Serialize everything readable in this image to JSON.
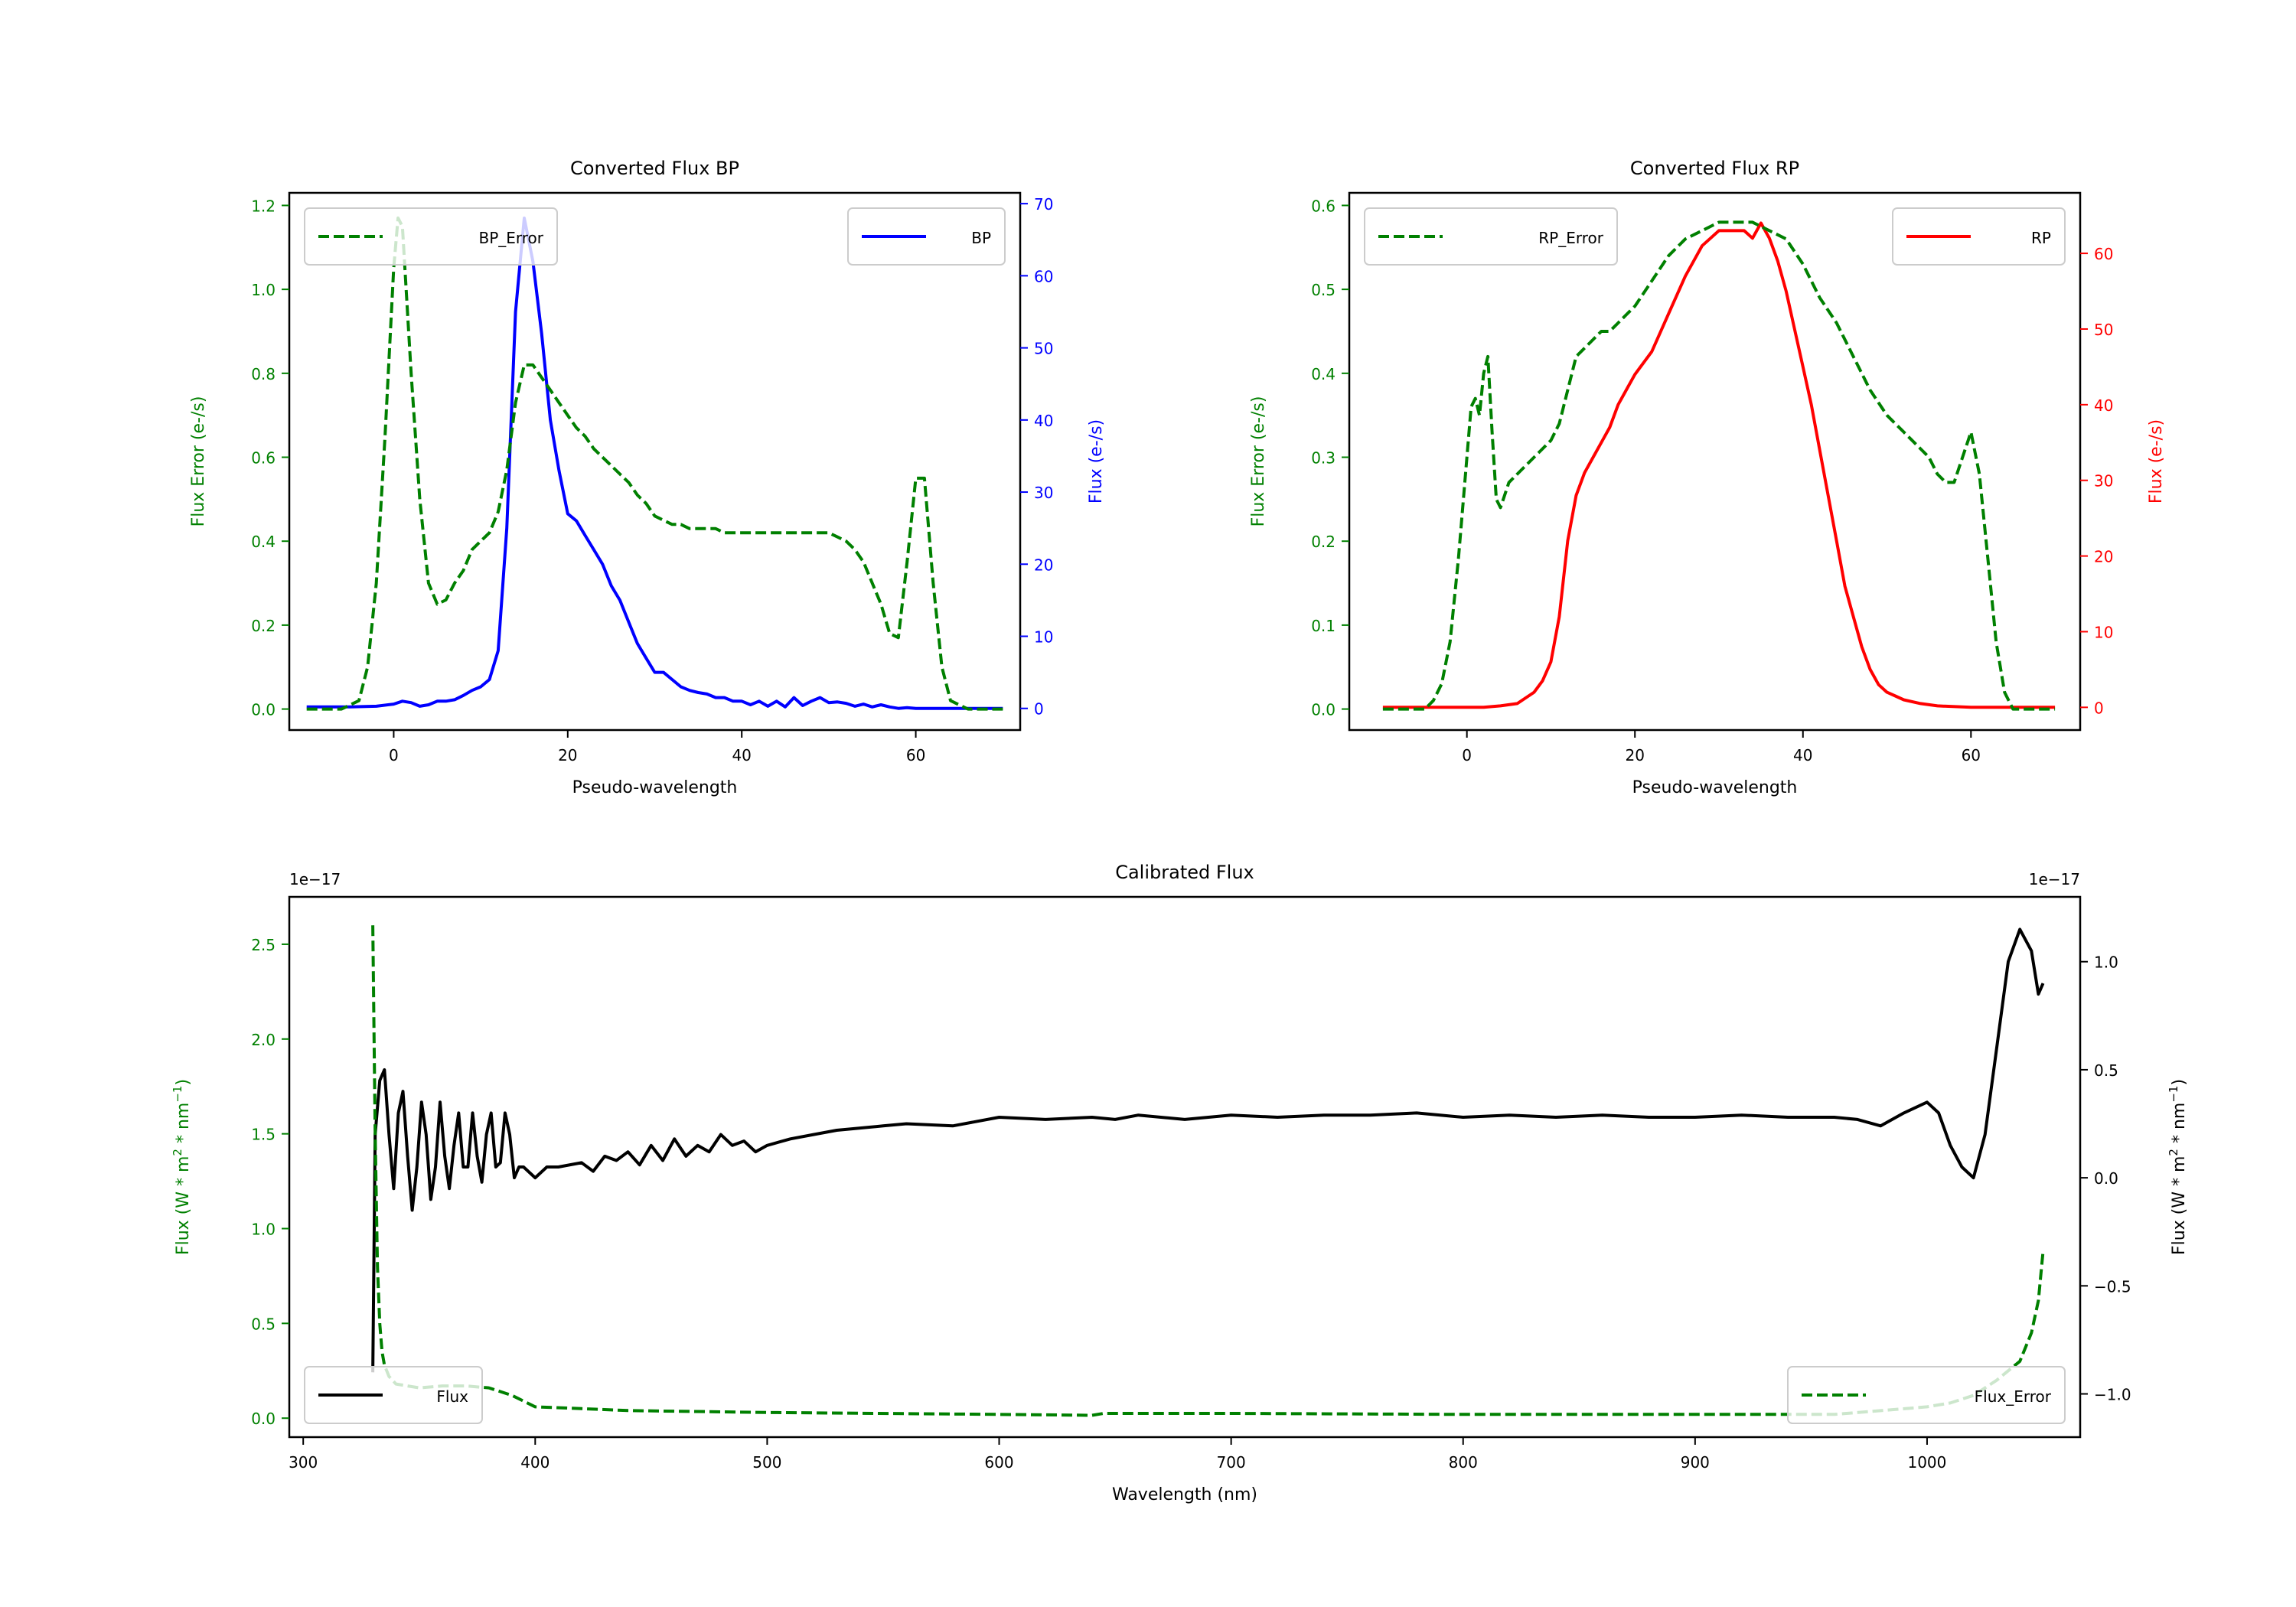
{
  "colors": {
    "green": "#008000",
    "blue": "#0000ff",
    "red": "#ff0000",
    "black": "#000000"
  },
  "chart_data": [
    {
      "id": "bp",
      "type": "line",
      "title": "Converted Flux BP",
      "xlabel": "Pseudo-wavelength",
      "ylabel_left": "Flux Error (e-/s)",
      "ylabel_right": "Flux (e-/s)",
      "xlim": [
        -12,
        72
      ],
      "ylim_left": [
        -0.05,
        1.23
      ],
      "ylim_right": [
        -3,
        71.5
      ],
      "xticks": [
        0,
        20,
        40,
        60
      ],
      "yticks_left": [
        0.0,
        0.2,
        0.4,
        0.6,
        0.8,
        1.0,
        1.2
      ],
      "yticks_right": [
        0,
        10,
        20,
        30,
        40,
        50,
        60,
        70
      ],
      "legend_left": "BP_Error",
      "legend_right": "BP",
      "series": [
        {
          "name": "BP_Error",
          "axis": "left",
          "color": "#008000",
          "dash": true,
          "x": [
            -10,
            -6,
            -4,
            -3,
            -2,
            -1,
            0,
            0.5,
            1,
            2,
            3,
            4,
            5,
            6,
            7,
            8,
            9,
            10,
            11,
            12,
            13,
            14,
            15,
            16,
            17,
            18,
            19,
            20,
            21,
            22,
            23,
            24,
            25,
            26,
            27,
            28,
            29,
            30,
            31,
            32,
            33,
            34,
            35,
            36,
            37,
            38,
            39,
            40,
            41,
            42,
            43,
            44,
            45,
            46,
            47,
            48,
            49,
            50,
            51,
            52,
            53,
            54,
            55,
            56,
            57,
            58,
            59,
            60,
            61,
            62,
            63,
            64,
            66,
            70
          ],
          "y": [
            0.0,
            0.0,
            0.02,
            0.1,
            0.3,
            0.65,
            1.05,
            1.17,
            1.15,
            0.8,
            0.5,
            0.3,
            0.25,
            0.26,
            0.3,
            0.33,
            0.38,
            0.4,
            0.42,
            0.47,
            0.57,
            0.73,
            0.82,
            0.82,
            0.79,
            0.76,
            0.73,
            0.7,
            0.67,
            0.65,
            0.62,
            0.6,
            0.58,
            0.56,
            0.54,
            0.51,
            0.49,
            0.46,
            0.45,
            0.44,
            0.44,
            0.43,
            0.43,
            0.43,
            0.43,
            0.42,
            0.42,
            0.42,
            0.42,
            0.42,
            0.42,
            0.42,
            0.42,
            0.42,
            0.42,
            0.42,
            0.42,
            0.42,
            0.41,
            0.4,
            0.38,
            0.35,
            0.3,
            0.25,
            0.18,
            0.17,
            0.35,
            0.55,
            0.55,
            0.3,
            0.1,
            0.02,
            0.0,
            0.0
          ]
        },
        {
          "name": "BP",
          "axis": "right",
          "color": "#0000ff",
          "dash": false,
          "x": [
            -10,
            -5,
            -2,
            0,
            1,
            2,
            3,
            4,
            5,
            6,
            7,
            8,
            9,
            10,
            11,
            12,
            13,
            14,
            15,
            16,
            17,
            18,
            19,
            20,
            21,
            22,
            23,
            24,
            25,
            26,
            27,
            28,
            29,
            30,
            31,
            32,
            33,
            34,
            35,
            36,
            37,
            38,
            39,
            40,
            41,
            42,
            43,
            44,
            45,
            46,
            47,
            48,
            49,
            50,
            51,
            52,
            53,
            54,
            55,
            56,
            57,
            58,
            59,
            60,
            62,
            65,
            70
          ],
          "y": [
            0.2,
            0.2,
            0.3,
            0.6,
            1.0,
            0.8,
            0.3,
            0.5,
            1.0,
            1.0,
            1.2,
            1.8,
            2.5,
            3.0,
            4.0,
            8.0,
            25.0,
            55.0,
            68.0,
            62.0,
            52.0,
            40.0,
            33.0,
            27.0,
            26.0,
            24.0,
            22.0,
            20.0,
            17.0,
            15.0,
            12.0,
            9.0,
            7.0,
            5.0,
            5.0,
            4.0,
            3.0,
            2.5,
            2.2,
            2.0,
            1.5,
            1.5,
            1.0,
            1.0,
            0.5,
            1.0,
            0.3,
            1.0,
            0.2,
            1.5,
            0.4,
            1.0,
            1.5,
            0.8,
            0.9,
            0.7,
            0.3,
            0.6,
            0.2,
            0.5,
            0.2,
            0.0,
            0.1,
            0.0,
            0.0,
            0.0,
            0.0
          ]
        }
      ]
    },
    {
      "id": "rp",
      "type": "line",
      "title": "Converted Flux RP",
      "xlabel": "Pseudo-wavelength",
      "ylabel_left": "Flux Error (e-/s)",
      "ylabel_right": "Flux (e-/s)",
      "xlim": [
        -14,
        73
      ],
      "ylim_left": [
        -0.025,
        0.615
      ],
      "ylim_right": [
        -3,
        68
      ],
      "xticks": [
        0,
        20,
        40,
        60
      ],
      "yticks_left": [
        0.0,
        0.1,
        0.2,
        0.3,
        0.4,
        0.5,
        0.6
      ],
      "yticks_right": [
        0,
        10,
        20,
        30,
        40,
        50,
        60
      ],
      "legend_left": "RP_Error",
      "legend_right": "RP",
      "series": [
        {
          "name": "RP_Error",
          "axis": "left",
          "color": "#008000",
          "dash": true,
          "x": [
            -10,
            -5,
            -4,
            -3,
            -2,
            -1,
            0,
            0.5,
            1,
            1.5,
            2,
            2.5,
            3,
            3.5,
            4,
            5,
            6,
            7,
            8,
            9,
            10,
            11,
            12,
            13,
            14,
            15,
            16,
            17,
            18,
            19,
            20,
            22,
            24,
            26,
            28,
            30,
            32,
            34,
            36,
            38,
            40,
            42,
            44,
            46,
            48,
            50,
            52,
            54,
            55,
            56,
            57,
            58,
            59,
            60,
            61,
            62,
            63,
            64,
            65,
            70
          ],
          "y": [
            0.0,
            0.0,
            0.01,
            0.03,
            0.08,
            0.18,
            0.3,
            0.36,
            0.37,
            0.35,
            0.4,
            0.42,
            0.33,
            0.25,
            0.24,
            0.27,
            0.28,
            0.29,
            0.3,
            0.31,
            0.32,
            0.34,
            0.38,
            0.42,
            0.43,
            0.44,
            0.45,
            0.45,
            0.46,
            0.47,
            0.48,
            0.51,
            0.54,
            0.56,
            0.57,
            0.58,
            0.58,
            0.58,
            0.57,
            0.56,
            0.53,
            0.49,
            0.46,
            0.42,
            0.38,
            0.35,
            0.33,
            0.31,
            0.3,
            0.28,
            0.27,
            0.27,
            0.3,
            0.33,
            0.28,
            0.18,
            0.08,
            0.02,
            0.0,
            0.0
          ]
        },
        {
          "name": "RP",
          "axis": "right",
          "color": "#ff0000",
          "dash": false,
          "x": [
            -10,
            -5,
            0,
            2,
            4,
            6,
            8,
            9,
            10,
            11,
            12,
            13,
            14,
            15,
            16,
            17,
            18,
            19,
            20,
            22,
            24,
            26,
            28,
            29,
            30,
            31,
            32,
            33,
            34,
            35,
            36,
            37,
            38,
            39,
            40,
            41,
            42,
            43,
            44,
            45,
            46,
            47,
            48,
            49,
            50,
            51,
            52,
            54,
            56,
            60,
            70
          ],
          "y": [
            0.0,
            0.0,
            0.0,
            0.0,
            0.2,
            0.5,
            2.0,
            3.5,
            6.0,
            12.0,
            22.0,
            28.0,
            31.0,
            33.0,
            35.0,
            37.0,
            40.0,
            42.0,
            44.0,
            47.0,
            52.0,
            57.0,
            61.0,
            62.0,
            63.0,
            63.0,
            63.0,
            63.0,
            62.0,
            64.0,
            62.0,
            59.0,
            55.0,
            50.0,
            45.0,
            40.0,
            34.0,
            28.0,
            22.0,
            16.0,
            12.0,
            8.0,
            5.0,
            3.0,
            2.0,
            1.5,
            1.0,
            0.5,
            0.2,
            0.0,
            0.0
          ]
        }
      ]
    },
    {
      "id": "calibrated",
      "type": "line",
      "title": "Calibrated Flux",
      "xlabel": "Wavelength (nm)",
      "ylabel_left": "Flux (W * m",
      "ylabel_right": "Flux (W * m",
      "ylabel_sup1": "2",
      "ylabel_mid": " * nm",
      "ylabel_sup2": "−1",
      "ylabel_end": ")",
      "offset_left": "1e−17",
      "offset_right": "1e−17",
      "xlim": [
        294,
        1066
      ],
      "ylim_left": [
        -0.1,
        2.75
      ],
      "ylim_right": [
        -1.2,
        1.3
      ],
      "xticks": [
        300,
        400,
        500,
        600,
        700,
        800,
        900,
        1000
      ],
      "yticks_left": [
        "0.0",
        "0.5",
        "1.0",
        "1.5",
        "2.0",
        "2.5"
      ],
      "yticks_right": [
        "1.0",
        "0.5",
        "0.0",
        "−0.5",
        "−1.0"
      ],
      "ytick_values_left": [
        0.0,
        0.5,
        1.0,
        1.5,
        2.0,
        2.5
      ],
      "ytick_values_right": [
        1.0,
        0.5,
        0.0,
        -0.5,
        -1.0
      ],
      "legend_left": "Flux",
      "legend_right": "Flux_Error",
      "series": [
        {
          "name": "Flux",
          "axis": "right",
          "color": "#000000",
          "dash": false,
          "x": [
            330,
            331,
            333,
            335,
            337,
            339,
            341,
            343,
            345,
            347,
            349,
            351,
            353,
            355,
            357,
            359,
            361,
            363,
            365,
            367,
            369,
            371,
            373,
            375,
            377,
            379,
            381,
            383,
            385,
            387,
            389,
            391,
            393,
            395,
            400,
            405,
            410,
            420,
            425,
            430,
            435,
            440,
            445,
            450,
            455,
            460,
            465,
            470,
            475,
            480,
            485,
            490,
            495,
            500,
            510,
            520,
            530,
            550,
            560,
            580,
            600,
            620,
            640,
            650,
            660,
            680,
            700,
            720,
            740,
            760,
            780,
            800,
            820,
            840,
            860,
            880,
            900,
            920,
            940,
            960,
            970,
            980,
            990,
            1000,
            1005,
            1010,
            1015,
            1020,
            1025,
            1030,
            1035,
            1040,
            1045,
            1048,
            1050
          ],
          "y": [
            -0.9,
            0.2,
            0.45,
            0.5,
            0.2,
            -0.05,
            0.3,
            0.4,
            0.1,
            -0.15,
            0.05,
            0.35,
            0.2,
            -0.1,
            0.05,
            0.35,
            0.1,
            -0.05,
            0.15,
            0.3,
            0.05,
            0.05,
            0.3,
            0.1,
            -0.02,
            0.2,
            0.3,
            0.05,
            0.07,
            0.3,
            0.2,
            0.0,
            0.05,
            0.05,
            0.0,
            0.05,
            0.05,
            0.07,
            0.03,
            0.1,
            0.08,
            0.12,
            0.06,
            0.15,
            0.08,
            0.18,
            0.1,
            0.15,
            0.12,
            0.2,
            0.15,
            0.17,
            0.12,
            0.15,
            0.18,
            0.2,
            0.22,
            0.24,
            0.25,
            0.24,
            0.28,
            0.27,
            0.28,
            0.27,
            0.29,
            0.27,
            0.29,
            0.28,
            0.29,
            0.29,
            0.3,
            0.28,
            0.29,
            0.28,
            0.29,
            0.28,
            0.28,
            0.29,
            0.28,
            0.28,
            0.27,
            0.24,
            0.3,
            0.35,
            0.3,
            0.15,
            0.05,
            0.0,
            0.2,
            0.6,
            1.0,
            1.15,
            1.05,
            0.85,
            0.9
          ]
        },
        {
          "name": "Flux_Error",
          "axis": "left",
          "color": "#008000",
          "dash": true,
          "x": [
            330,
            331,
            332,
            333,
            334,
            335,
            337,
            340,
            345,
            350,
            360,
            370,
            380,
            390,
            400,
            420,
            440,
            500,
            600,
            640,
            645,
            700,
            800,
            900,
            960,
            1000,
            1010,
            1020,
            1030,
            1035,
            1040,
            1045,
            1048,
            1050
          ],
          "y": [
            2.6,
            1.5,
            0.8,
            0.5,
            0.35,
            0.28,
            0.22,
            0.18,
            0.17,
            0.16,
            0.17,
            0.17,
            0.16,
            0.12,
            0.06,
            0.05,
            0.04,
            0.03,
            0.02,
            0.015,
            0.025,
            0.025,
            0.02,
            0.02,
            0.02,
            0.06,
            0.08,
            0.12,
            0.2,
            0.25,
            0.3,
            0.45,
            0.62,
            0.88
          ]
        }
      ]
    }
  ]
}
